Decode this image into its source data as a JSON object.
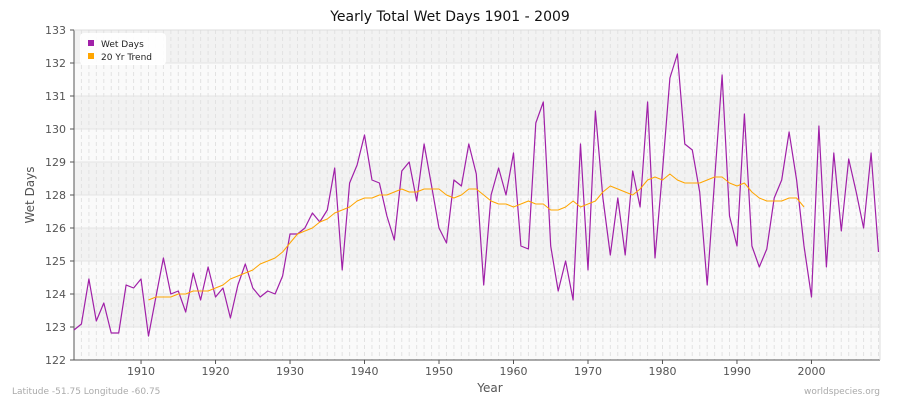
{
  "chart_data": {
    "type": "line",
    "title": "Yearly Total Wet Days 1901 - 2009",
    "xlabel": "Year",
    "ylabel": "Wet Days",
    "xlim": [
      1901,
      2009
    ],
    "ylim": [
      122,
      133
    ],
    "x_ticks": [
      1910,
      1920,
      1930,
      1940,
      1950,
      1960,
      1970,
      1980,
      1990,
      2000
    ],
    "y_ticks": [
      122,
      123.1,
      124.2,
      125.3,
      126.4,
      127.5,
      128.6,
      129.7,
      130.8,
      131.9,
      133
    ],
    "y_tick_labels": [
      "122",
      "123",
      "124",
      "125",
      "126",
      "128",
      "129",
      "130",
      "131",
      "132",
      "133"
    ],
    "grid": true,
    "legend_position": "top-left",
    "series": [
      {
        "name": "Wet Days",
        "color": "#a020a8",
        "x_start": 1901,
        "values": [
          123.0,
          123.2,
          124.7,
          123.3,
          123.9,
          122.9,
          122.9,
          124.5,
          124.4,
          124.7,
          122.8,
          124.1,
          125.4,
          124.2,
          124.3,
          123.6,
          124.9,
          124.0,
          125.1,
          124.1,
          124.4,
          123.4,
          124.5,
          125.2,
          124.4,
          124.1,
          124.3,
          124.2,
          124.8,
          126.2,
          126.2,
          126.4,
          126.9,
          126.6,
          127.0,
          128.4,
          125.0,
          127.9,
          128.5,
          129.5,
          128.0,
          127.9,
          126.8,
          126.0,
          128.3,
          128.6,
          127.3,
          129.2,
          127.8,
          126.4,
          125.9,
          128.0,
          127.8,
          129.2,
          128.2,
          124.5,
          127.5,
          128.4,
          127.5,
          128.9,
          125.8,
          125.7,
          129.9,
          130.6,
          125.8,
          124.3,
          125.3,
          124.0,
          129.2,
          125.0,
          130.3,
          127.4,
          125.5,
          127.4,
          125.5,
          128.3,
          127.1,
          130.6,
          125.4,
          128.3,
          131.4,
          132.2,
          129.2,
          129.0,
          127.6,
          124.5,
          128.0,
          131.5,
          126.8,
          125.8,
          130.2,
          125.8,
          125.1,
          125.7,
          127.4,
          128.0,
          129.6,
          128.0,
          125.8,
          124.1,
          129.8,
          125.1,
          128.9,
          126.3,
          128.7,
          127.6,
          126.4,
          128.9,
          125.6
        ]
      },
      {
        "name": "20 Yr Trend",
        "color": "#ffa500",
        "x_start": 1911,
        "values": [
          124.0,
          124.1,
          124.1,
          124.1,
          124.2,
          124.2,
          124.3,
          124.3,
          124.3,
          124.4,
          124.5,
          124.7,
          124.8,
          124.9,
          125.0,
          125.2,
          125.3,
          125.4,
          125.6,
          125.9,
          126.2,
          126.3,
          126.4,
          126.6,
          126.7,
          126.9,
          127.0,
          127.1,
          127.3,
          127.4,
          127.4,
          127.5,
          127.5,
          127.6,
          127.7,
          127.6,
          127.6,
          127.7,
          127.7,
          127.7,
          127.5,
          127.4,
          127.5,
          127.7,
          127.7,
          127.5,
          127.3,
          127.2,
          127.2,
          127.1,
          127.2,
          127.3,
          127.2,
          127.2,
          127.0,
          127.0,
          127.1,
          127.3,
          127.1,
          127.2,
          127.3,
          127.6,
          127.8,
          127.7,
          127.6,
          127.5,
          127.7,
          128.0,
          128.1,
          128.0,
          128.2,
          128.0,
          127.9,
          127.9,
          127.9,
          128.0,
          128.1,
          128.1,
          127.9,
          127.8,
          127.9,
          127.6,
          127.4,
          127.3,
          127.3,
          127.3,
          127.4,
          127.4,
          127.1
        ]
      }
    ]
  },
  "footer": {
    "location": "Latitude -51.75 Longitude -60.75",
    "source": "worldspecies.org"
  }
}
